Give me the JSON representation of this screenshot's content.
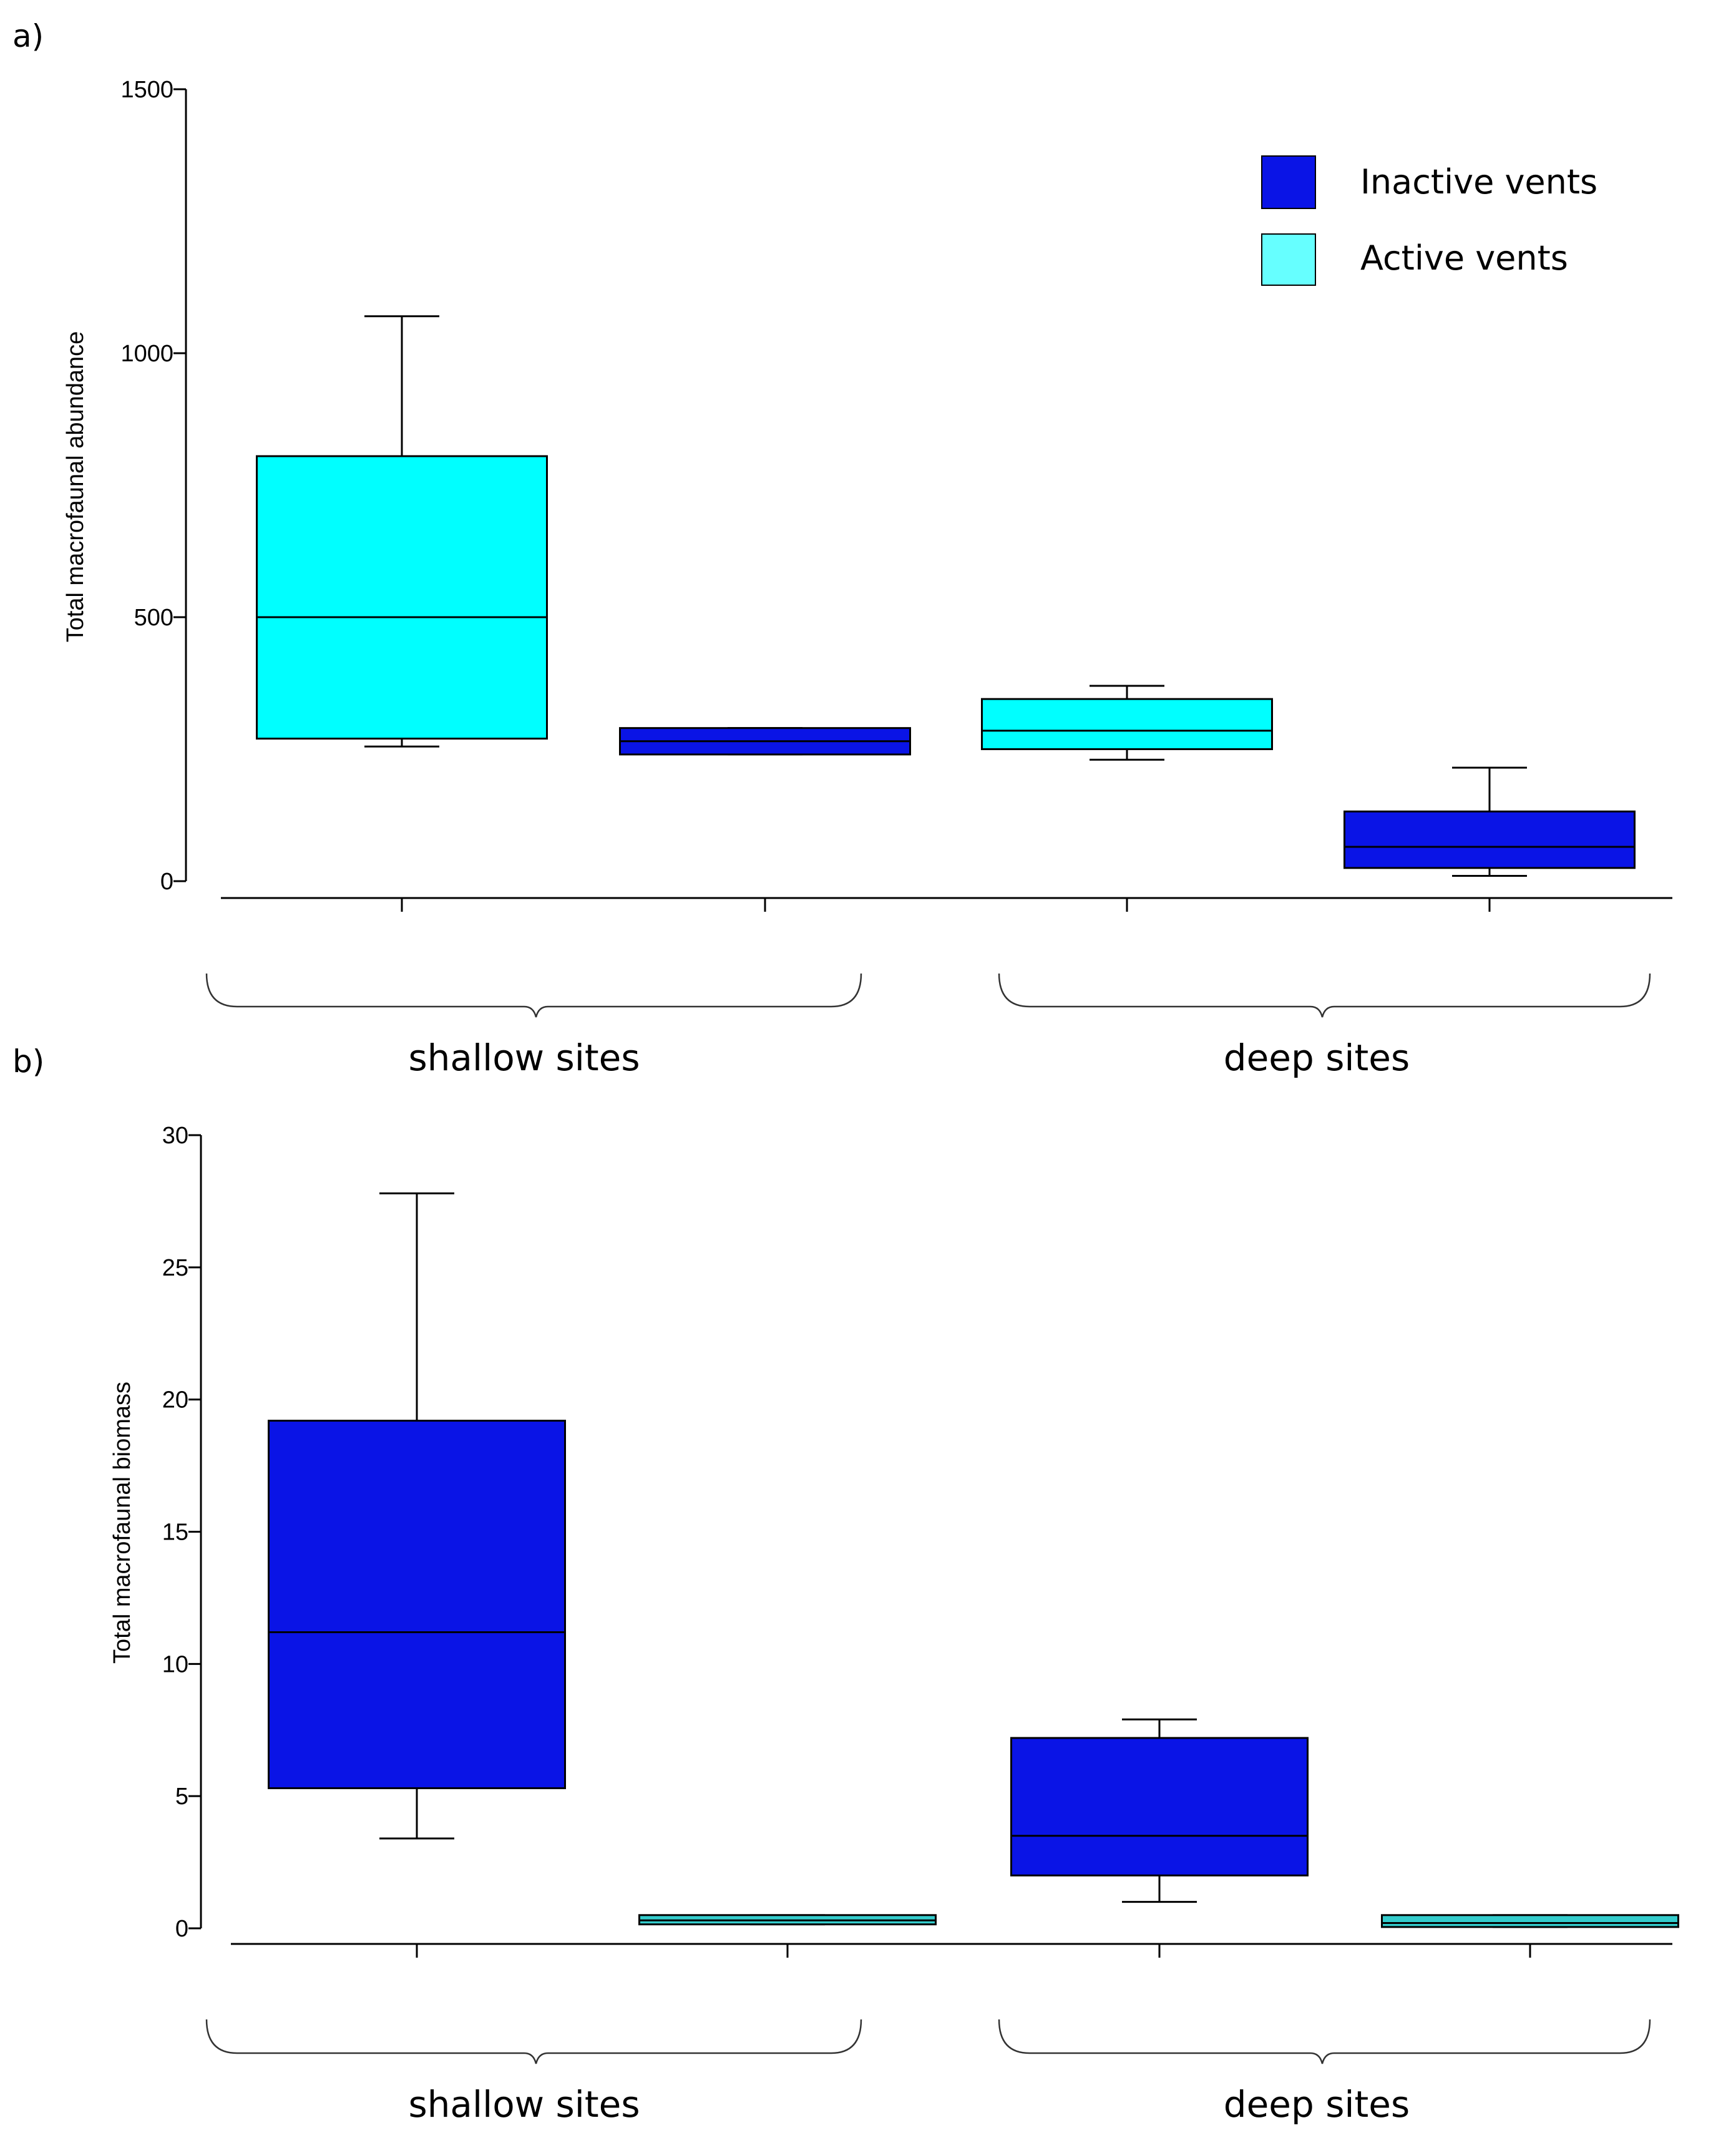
{
  "legend": {
    "items": [
      {
        "label": "Inactive vents",
        "color": "#0A14E6"
      },
      {
        "label": "Active vents",
        "color": "#66FFFF"
      }
    ]
  },
  "colors": {
    "inactive_fill": "#0A14E6",
    "active_fill_a": "#00FFFF",
    "active_fill_b": "#33CCCC",
    "line": "#000000"
  },
  "chart_data": [
    {
      "type": "boxplot",
      "panel": "a)",
      "ylabel": "Total macrofaunal abundance",
      "xlabel": "",
      "ylim": [
        0,
        1500
      ],
      "yticks": [
        0,
        500,
        1000,
        1500
      ],
      "groups": [
        "shallow sites",
        "deep sites"
      ],
      "boxes": [
        {
          "group": "shallow sites",
          "series": "Active vents",
          "min": 255,
          "q1": 270,
          "median": 500,
          "q3": 805,
          "max": 1070
        },
        {
          "group": "shallow sites",
          "series": "Inactive vents",
          "min": 240,
          "q1": 240,
          "median": 265,
          "q3": 290,
          "max": 290
        },
        {
          "group": "deep sites",
          "series": "Active vents",
          "min": 230,
          "q1": 250,
          "median": 285,
          "q3": 345,
          "max": 370
        },
        {
          "group": "deep sites",
          "series": "Inactive vents",
          "min": 10,
          "q1": 25,
          "median": 65,
          "q3": 132,
          "max": 215
        }
      ]
    },
    {
      "type": "boxplot",
      "panel": "b)",
      "ylabel": "Total macrofaunal biomass",
      "xlabel": "",
      "ylim": [
        0,
        30
      ],
      "yticks": [
        0,
        5,
        10,
        15,
        20,
        25,
        30
      ],
      "groups": [
        "shallow sites",
        "deep sites"
      ],
      "boxes": [
        {
          "group": "shallow sites",
          "series": "Inactive vents",
          "min": 3.4,
          "q1": 5.3,
          "median": 11.2,
          "q3": 19.2,
          "max": 27.8
        },
        {
          "group": "shallow sites",
          "series": "Active vents",
          "min": 0.15,
          "q1": 0.15,
          "median": 0.3,
          "q3": 0.5,
          "max": 0.5
        },
        {
          "group": "deep sites",
          "series": "Inactive vents",
          "min": 1.0,
          "q1": 2.0,
          "median": 3.5,
          "q3": 7.2,
          "max": 7.9
        },
        {
          "group": "deep sites",
          "series": "Active vents",
          "min": 0.05,
          "q1": 0.05,
          "median": 0.2,
          "q3": 0.5,
          "max": 0.5
        }
      ]
    }
  ]
}
